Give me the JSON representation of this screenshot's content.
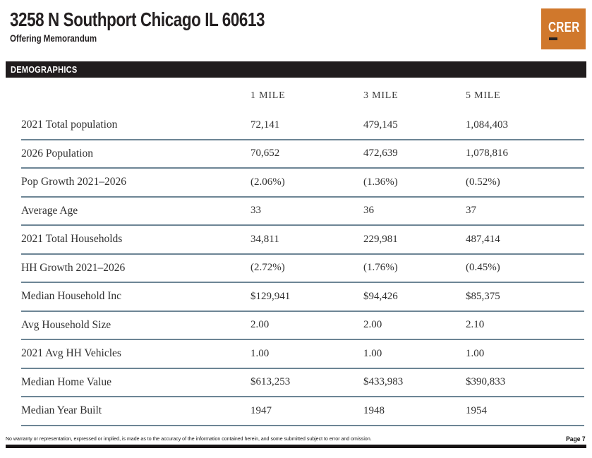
{
  "page": {
    "title": "3258 N Southport Chicago IL 60613",
    "subtitle": "Offering Memorandum",
    "logo_text": "CRER"
  },
  "section_header": "DEMOGRAPHICS",
  "table": {
    "columns": [
      "1 MILE",
      "3 MILE",
      "5 MILE"
    ],
    "rows": [
      {
        "label": "2021 Total population",
        "values": [
          "72,141",
          "479,145",
          "1,084,403"
        ]
      },
      {
        "label": "2026 Population",
        "values": [
          "70,652",
          "472,639",
          "1,078,816"
        ]
      },
      {
        "label": "Pop Growth 2021–2026",
        "values": [
          "(2.06%)",
          "(1.36%)",
          "(0.52%)"
        ]
      },
      {
        "label": "Average Age",
        "values": [
          "33",
          "36",
          "37"
        ]
      },
      {
        "label": "2021 Total Households",
        "values": [
          "34,811",
          "229,981",
          "487,414"
        ]
      },
      {
        "label": "HH Growth 2021–2026",
        "values": [
          "(2.72%)",
          "(1.76%)",
          "(0.45%)"
        ]
      },
      {
        "label": "Median Household Inc",
        "values": [
          "$129,941",
          "$94,426",
          "$85,375"
        ]
      },
      {
        "label": "Avg Household Size",
        "values": [
          "2.00",
          "2.00",
          "2.10"
        ]
      },
      {
        "label": "2021 Avg HH Vehicles",
        "values": [
          "1.00",
          "1.00",
          "1.00"
        ]
      },
      {
        "label": "Median Home Value",
        "values": [
          "$613,253",
          "$433,983",
          "$390,833"
        ]
      },
      {
        "label": "Median Year Built",
        "values": [
          "1947",
          "1948",
          "1954"
        ]
      }
    ]
  },
  "footer": {
    "disclaimer": "No warranty or representation, expressed or implied, is made as to the accuracy of the information contained herein, and some submitted subject to error and omission.",
    "page_number": "Page 7"
  },
  "colors": {
    "brand_orange": "#d0782c",
    "header_bar_black": "#201c1d",
    "table_divider": "#6d8595"
  }
}
